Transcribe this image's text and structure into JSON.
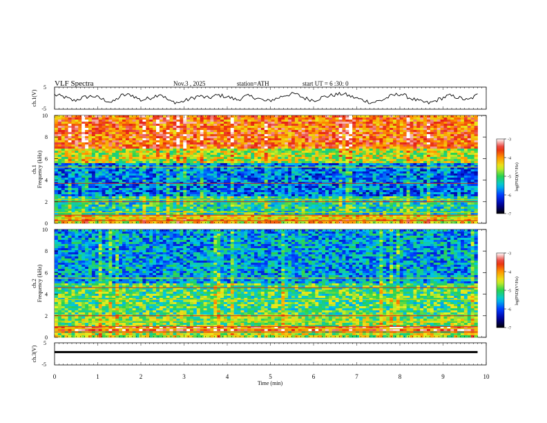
{
  "header": {
    "title": "VLF  Spectra",
    "date": "Nov.3  , 2025",
    "station": "station=ATH",
    "start": "start  UT  =   6  :30: 0"
  },
  "chart_data": [
    {
      "type": "line",
      "panel": "ch1-waveform",
      "ylabel": "ch.1(V)",
      "ylim": [
        -5,
        5
      ],
      "yticks": [
        "5",
        "-5"
      ],
      "xlim": [
        0,
        10
      ],
      "x_end": 9.8,
      "series": [
        {
          "color": "#000000",
          "values": [
            1.5,
            0.5,
            -1.2,
            0.3,
            1.0,
            -0.5,
            -2.0,
            1.3,
            1.5,
            -1.0,
            0.2,
            2.0,
            -1.5,
            -2.0,
            -0.5,
            1.0,
            0.0,
            1.4,
            0.6,
            -0.8,
            1.0,
            0.2,
            -1.5,
            -0.3,
            1.4,
            2.0,
            0.0,
            -1.0,
            0.6,
            1.4,
            2.0,
            0.5,
            -0.8,
            -2.0,
            -1.0,
            1.0,
            2.0,
            0.0,
            -1.5,
            -2.3,
            -0.5,
            1.2,
            0.3,
            -1.0,
            1.5
          ]
        }
      ]
    },
    {
      "type": "heatmap",
      "panel": "ch1-spectrogram",
      "ylabel": "ch.1\nFrequency  (kHz)",
      "ylim": [
        0,
        10
      ],
      "yticks": [
        "0",
        "2",
        "4",
        "6",
        "8",
        "10"
      ],
      "xlim": [
        0,
        10
      ],
      "x_end": 9.8,
      "colorbar": {
        "label": "log(PSD)(V²/Hz)",
        "ticks": [
          "-3",
          "-4",
          "-5",
          "-6",
          "-7"
        ],
        "range": [
          -7,
          -3
        ]
      },
      "lines_khz": [
        0.25,
        0.5,
        0.75,
        1.0,
        2.0,
        2.2,
        3.7,
        5.2
      ],
      "note": "high-frequency band red/yellow above 7 kHz, blue speckle 2.5-5.5 kHz"
    },
    {
      "type": "heatmap",
      "panel": "ch2-spectrogram",
      "ylabel": "ch.2\nFrequency  (kHz)",
      "ylim": [
        0,
        10
      ],
      "yticks": [
        "0",
        "2",
        "4",
        "6",
        "8",
        "10"
      ],
      "xlim": [
        0,
        10
      ],
      "x_end": 9.8,
      "colorbar": {
        "label": "log(PSD)(V²/Hz)",
        "ticks": [
          "-3",
          "-4",
          "-5",
          "-6",
          "-7"
        ],
        "range": [
          -7,
          -3
        ]
      },
      "lines_khz": [
        0.5,
        0.8,
        1.0,
        1.5,
        2.0,
        3.5,
        4.6,
        5.5
      ],
      "note": "mostly green, blue speckle 5-9 kHz, red band near 0.8 kHz"
    },
    {
      "type": "line",
      "panel": "ch3-waveform",
      "ylabel": "ch.3(V)",
      "ylim": [
        -5,
        5
      ],
      "yticks": [
        "5",
        "-5"
      ],
      "xlim": [
        0,
        10
      ],
      "x_end": 9.8,
      "series": [
        {
          "color": "#000000",
          "values": [
            0.8,
            0.8,
            0.8,
            0.8,
            0.8
          ]
        }
      ]
    }
  ],
  "xaxis": {
    "label": "Time  (min)",
    "ticks": [
      "0",
      "1",
      "2",
      "3",
      "4",
      "5",
      "6",
      "7",
      "8",
      "9",
      "10"
    ]
  }
}
